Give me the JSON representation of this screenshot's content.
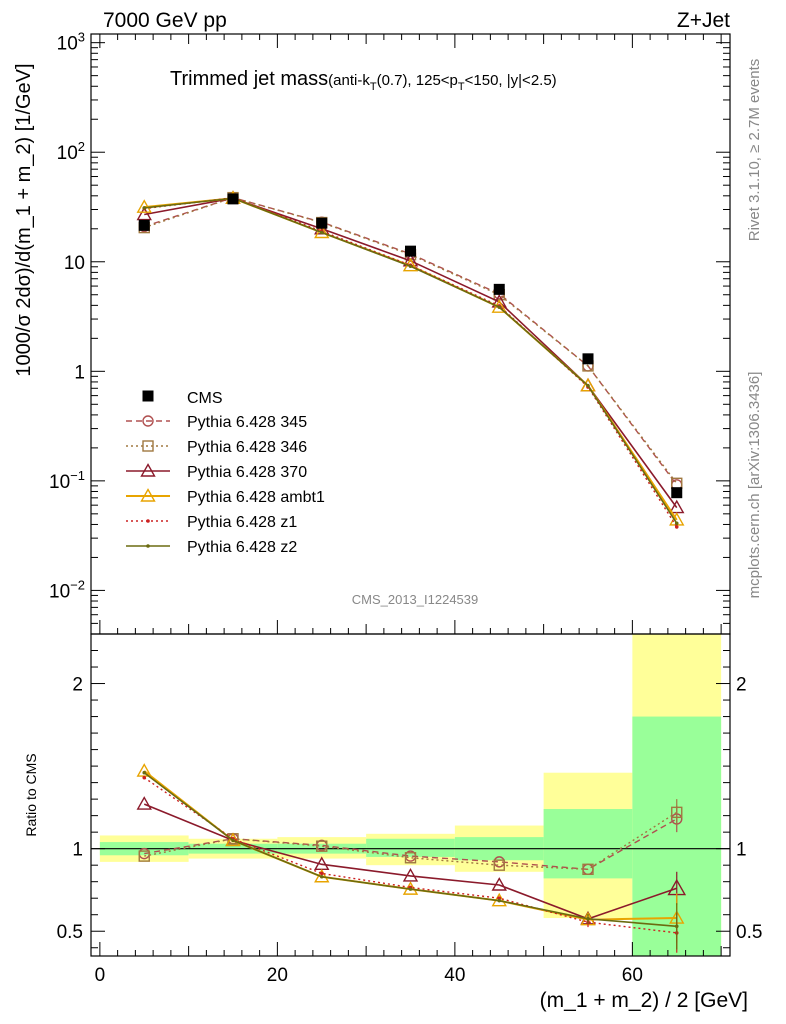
{
  "header": {
    "left": "7000 GeV pp",
    "right": "Z+Jet"
  },
  "title": {
    "main": "Trimmed jet mass",
    "detail": "(anti-kT(0.7), 125<pT<150, |y|<2.5)"
  },
  "side_labels": {
    "rivet": "Rivet 3.1.10, ≥ 2.7M events",
    "mcplots": "mcplots.cern.ch [arXiv:1306.3436]"
  },
  "watermark": "CMS_2013_I1224539",
  "colors": {
    "data": "#000000",
    "p345": "#b05050",
    "p346": "#a07840",
    "p370": "#8b1a2b",
    "ambt1": "#e8a400",
    "z1": "#cc2020",
    "z2": "#6b6b10",
    "band_inner": "#99ff99",
    "band_outer": "#ffff99"
  },
  "chart_data": [
    {
      "type": "line",
      "title": "Trimmed jet mass(anti-kT(0.7), 125<pT<150, |y|<2.5)",
      "xlabel": "(m_1 + m_2) / 2 [GeV]",
      "ylabel": "1000/σ 2dσ)/d(m_1 + m_2) [1/GeV]",
      "ylog": true,
      "xlim": [
        -1,
        71
      ],
      "ylim": [
        0.004,
        1200
      ],
      "y_ticks": [
        "10^-2",
        "10^-1",
        "1",
        "10",
        "10^2",
        "10^3"
      ],
      "legend_position": "center-left",
      "x": [
        5,
        15,
        25,
        35,
        45,
        55,
        65
      ],
      "data": {
        "name": "CMS",
        "values": [
          21.5,
          37.5,
          22.5,
          12.5,
          5.6,
          1.3,
          0.078
        ]
      },
      "series": [
        {
          "name": "Pythia 6.428 345",
          "style": "dashed",
          "marker": "circle",
          "values": [
            21,
            38.5,
            23,
            11.8,
            5.1,
            1.12,
            0.092
          ]
        },
        {
          "name": "Pythia 6.428 346",
          "style": "dotted",
          "marker": "square",
          "values": [
            20.5,
            38.5,
            22.8,
            11.6,
            5.0,
            1.12,
            0.095
          ]
        },
        {
          "name": "Pythia 6.428 370",
          "style": "solid",
          "marker": "triangle",
          "values": [
            27,
            38,
            20,
            10.2,
            4.3,
            0.74,
            0.057
          ]
        },
        {
          "name": "Pythia 6.428 ambt1",
          "style": "solid",
          "marker": "triangle",
          "values": [
            31.5,
            38,
            18.5,
            9.2,
            3.85,
            0.74,
            0.044
          ]
        },
        {
          "name": "Pythia 6.428 z1",
          "style": "dotted",
          "marker": "dot",
          "values": [
            30.5,
            38.5,
            19,
            9.3,
            3.95,
            0.72,
            0.038
          ]
        },
        {
          "name": "Pythia 6.428 z2",
          "style": "solid",
          "marker": "dot",
          "values": [
            31,
            38,
            18.5,
            9.1,
            3.85,
            0.74,
            0.041
          ]
        }
      ]
    },
    {
      "type": "line",
      "xlabel": "(m_1 + m_2) / 2 [GeV]",
      "ylabel": "Ratio to CMS",
      "xlim": [
        -1,
        71
      ],
      "ylim": [
        0.35,
        2.3
      ],
      "x_ticks": [
        0,
        20,
        40,
        60
      ],
      "y_ticks": [
        0.5,
        1,
        2
      ],
      "bands": [
        {
          "x": [
            0,
            10
          ],
          "inner": [
            0.96,
            1.04
          ],
          "outer": [
            0.92,
            1.08
          ]
        },
        {
          "x": [
            10,
            20
          ],
          "inner": [
            0.97,
            1.03
          ],
          "outer": [
            0.94,
            1.06
          ]
        },
        {
          "x": [
            20,
            30
          ],
          "inner": [
            0.97,
            1.03
          ],
          "outer": [
            0.94,
            1.07
          ]
        },
        {
          "x": [
            30,
            40
          ],
          "inner": [
            0.95,
            1.06
          ],
          "outer": [
            0.9,
            1.09
          ]
        },
        {
          "x": [
            40,
            50
          ],
          "inner": [
            0.93,
            1.07
          ],
          "outer": [
            0.86,
            1.14
          ]
        },
        {
          "x": [
            50,
            60
          ],
          "inner": [
            0.82,
            1.24
          ],
          "outer": [
            0.58,
            1.46
          ]
        },
        {
          "x": [
            60,
            70
          ],
          "inner": [
            0.35,
            1.8
          ],
          "outer": [
            0.35,
            2.3
          ]
        }
      ],
      "series": [
        {
          "name": "Pythia 6.428 345",
          "values": [
            0.97,
            1.06,
            1.02,
            0.955,
            0.92,
            0.875,
            1.18
          ],
          "errors": [
            0.01,
            0.01,
            0.01,
            0.01,
            0.015,
            0.02,
            0.08
          ]
        },
        {
          "name": "Pythia 6.428 346",
          "values": [
            0.955,
            1.06,
            1.015,
            0.945,
            0.9,
            0.875,
            1.22
          ],
          "errors": [
            0.01,
            0.01,
            0.01,
            0.01,
            0.015,
            0.02,
            0.08
          ]
        },
        {
          "name": "Pythia 6.428 370",
          "values": [
            1.27,
            1.05,
            0.905,
            0.835,
            0.78,
            0.575,
            0.76
          ],
          "errors": [
            0.01,
            0.01,
            0.01,
            0.01,
            0.015,
            0.03,
            0.1
          ]
        },
        {
          "name": "Pythia 6.428 ambt1",
          "values": [
            1.47,
            1.05,
            0.83,
            0.755,
            0.685,
            0.57,
            0.58
          ],
          "errors": [
            0.01,
            0.01,
            0.01,
            0.01,
            0.015,
            0.03,
            0.15
          ]
        },
        {
          "name": "Pythia 6.428 z1",
          "values": [
            1.43,
            1.06,
            0.85,
            0.765,
            0.7,
            0.555,
            0.49
          ],
          "errors": [
            0.01,
            0.01,
            0.01,
            0.01,
            0.015,
            0.03,
            0.12
          ]
        },
        {
          "name": "Pythia 6.428 z2",
          "values": [
            1.46,
            1.05,
            0.83,
            0.755,
            0.685,
            0.575,
            0.53
          ],
          "errors": [
            0.01,
            0.01,
            0.01,
            0.01,
            0.015,
            0.03,
            0.14
          ]
        }
      ]
    }
  ]
}
